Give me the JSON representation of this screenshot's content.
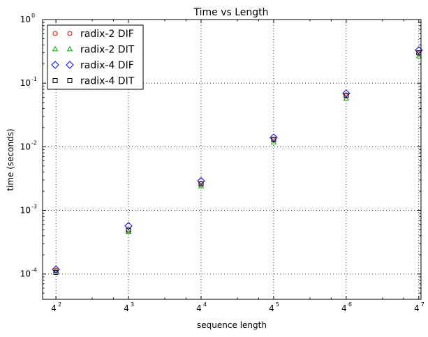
{
  "chart_data": {
    "type": "scatter",
    "title": "Time vs Length",
    "xlabel": "sequence length",
    "ylabel": "time (seconds)",
    "x_scale": "log4",
    "y_scale": "log10",
    "x_ticks": [
      {
        "base": "4",
        "exp": "2",
        "value": 16
      },
      {
        "base": "4",
        "exp": "3",
        "value": 64
      },
      {
        "base": "4",
        "exp": "4",
        "value": 256
      },
      {
        "base": "4",
        "exp": "5",
        "value": 1024
      },
      {
        "base": "4",
        "exp": "6",
        "value": 4096
      },
      {
        "base": "4",
        "exp": "7",
        "value": 16384
      }
    ],
    "y_ticks": [
      {
        "base": "10",
        "exp": "-4",
        "value": 0.0001
      },
      {
        "base": "10",
        "exp": "-3",
        "value": 0.001
      },
      {
        "base": "10",
        "exp": "-2",
        "value": 0.01
      },
      {
        "base": "10",
        "exp": "-1",
        "value": 0.1
      },
      {
        "base": "10",
        "exp": "0",
        "value": 1
      }
    ],
    "xlim": [
      12.4,
      17100
    ],
    "ylim": [
      4e-05,
      1
    ],
    "grid": true,
    "legend_position": "top-left",
    "x": [
      16,
      64,
      256,
      1024,
      4096,
      16384
    ],
    "series": [
      {
        "name": "radix-2 DIF",
        "marker": "circle",
        "color": "#ff0000",
        "values": [
          0.000115,
          0.00049,
          0.00265,
          0.0128,
          0.063,
          0.29
        ]
      },
      {
        "name": "radix-2 DIT",
        "marker": "triangle",
        "color": "#00aa00",
        "values": [
          0.000112,
          0.00046,
          0.0024,
          0.0118,
          0.057,
          0.265
        ]
      },
      {
        "name": "radix-4 DIF",
        "marker": "diamond",
        "color": "#0000ff",
        "values": [
          0.000118,
          0.00057,
          0.0029,
          0.014,
          0.069,
          0.33
        ]
      },
      {
        "name": "radix-4 DIT",
        "marker": "square",
        "color": "#000000",
        "values": [
          0.000106,
          0.00049,
          0.0026,
          0.0131,
          0.064,
          0.3
        ]
      }
    ]
  }
}
